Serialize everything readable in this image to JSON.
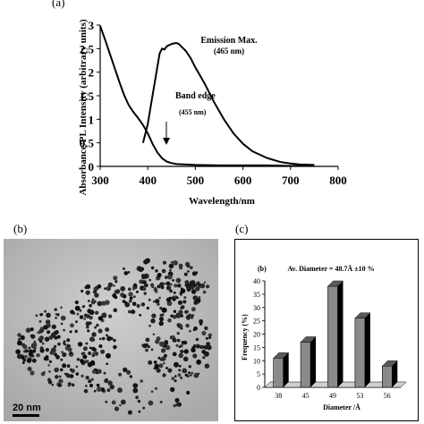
{
  "figure": {
    "labels": {
      "a": "(a)",
      "b": "(b)",
      "c": "(c)"
    }
  },
  "panel_a": {
    "ylabel": "Absorbance/PL Intensity (arbitrary units)",
    "xlabel": "Wavelength/nm",
    "annotation_emission": "Emission Max.",
    "annotation_emission_value": "(465 nm)",
    "annotation_band": "Band edge",
    "annotation_band_value": "(455 nm)"
  },
  "panel_b": {
    "scalebar_label": "20 nm"
  },
  "panel_c": {
    "inset_label": "(b)",
    "title": "Av. Diameter = 48.7Å ±10 %"
  },
  "chart_data": [
    {
      "type": "line",
      "xlabel": "Wavelength/nm",
      "ylabel": "Absorbance/PL Intensity (arbitrary units)",
      "xlim": [
        300,
        800
      ],
      "ylim": [
        0,
        3
      ],
      "xticks": [
        "300",
        "400",
        "500",
        "600",
        "700",
        "800"
      ],
      "yticks": [
        "0",
        "0.5",
        "1",
        "1.5",
        "2",
        "2.5",
        "3"
      ],
      "series": [
        {
          "x": [
            300,
            310,
            320,
            330,
            340,
            350,
            360,
            370,
            380,
            390,
            400,
            410,
            420,
            430,
            440,
            450,
            460,
            480,
            500,
            550,
            600,
            650,
            700,
            750
          ],
          "values": [
            2.98,
            2.7,
            2.4,
            2.1,
            1.8,
            1.52,
            1.3,
            1.15,
            1.02,
            0.88,
            0.7,
            0.48,
            0.3,
            0.17,
            0.1,
            0.07,
            0.05,
            0.04,
            0.03,
            0.02,
            0.02,
            0.02,
            0.01,
            0.01
          ]
        },
        {
          "x": [
            390,
            400,
            410,
            420,
            425,
            430,
            435,
            440,
            450,
            460,
            465,
            470,
            480,
            490,
            500,
            520,
            540,
            560,
            580,
            600,
            620,
            650,
            680,
            700,
            720,
            750
          ],
          "values": [
            0.5,
            0.9,
            1.5,
            2.1,
            2.4,
            2.5,
            2.48,
            2.55,
            2.6,
            2.62,
            2.6,
            2.55,
            2.45,
            2.3,
            2.1,
            1.75,
            1.35,
            1.0,
            0.7,
            0.48,
            0.32,
            0.18,
            0.09,
            0.06,
            0.04,
            0.03
          ]
        }
      ],
      "annotations": [
        "Emission Max.",
        "(465 nm)",
        "Band edge",
        "(455 nm)"
      ]
    },
    {
      "type": "bar",
      "title": "Av. Diameter = 48.7Å ±10 %",
      "xlabel": "Diameter /Å",
      "ylabel": "Frequency (%)",
      "categories": [
        "38",
        "45",
        "49",
        "53",
        "56"
      ],
      "values": [
        11,
        17,
        38,
        26,
        8
      ],
      "ylim": [
        0,
        40
      ],
      "yticks": [
        "0",
        "5",
        "10",
        "15",
        "20",
        "25",
        "30",
        "35",
        "40"
      ],
      "colors": {
        "bar": "#8a8a8a",
        "bar_side": "#000000"
      }
    }
  ]
}
